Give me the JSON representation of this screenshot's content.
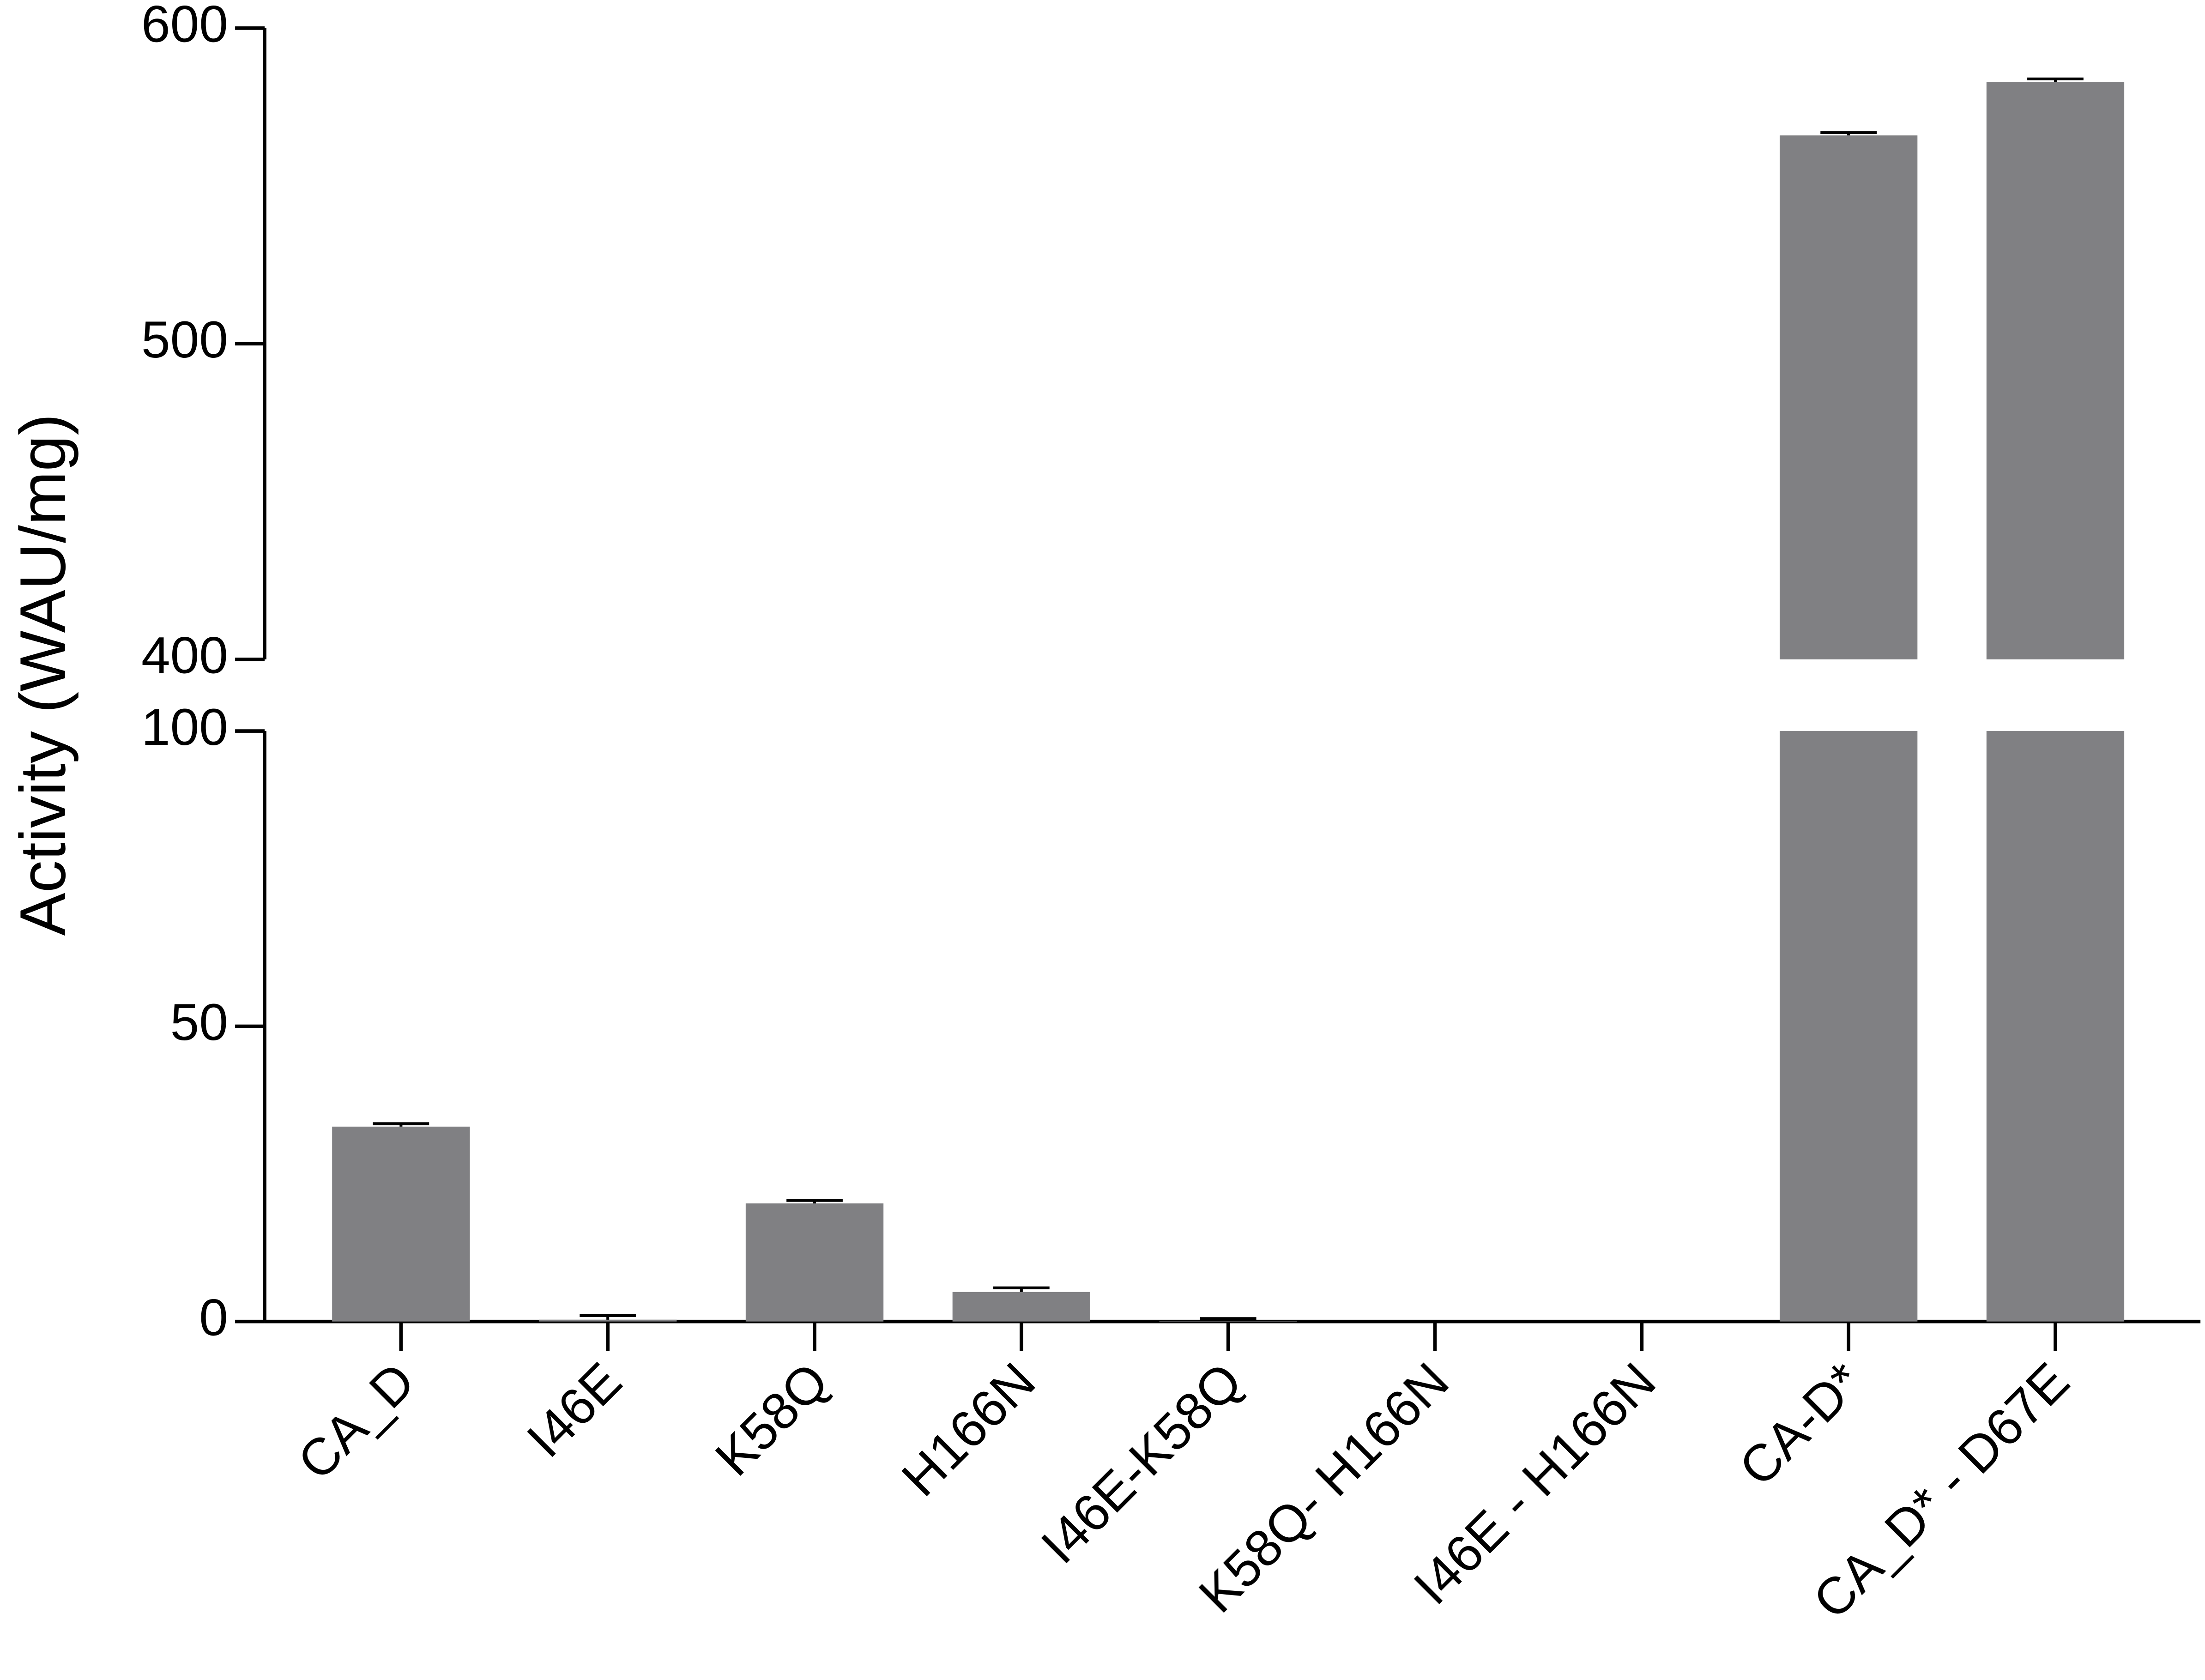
{
  "chart_data": {
    "type": "bar",
    "ylabel": "Activity (WAU/mg)",
    "categories": [
      "CA_D",
      "I46E",
      "K58Q",
      "H166N",
      "I46E-K58Q",
      "K58Q- H166N",
      "I46E - H166N",
      "CA-D*",
      "CA_D* - D67E"
    ],
    "values": [
      33,
      0.3,
      20,
      5,
      0.1,
      0,
      0,
      566,
      583
    ],
    "errors": [
      0.5,
      0.7,
      0.5,
      0.7,
      0.4,
      0,
      0,
      0.9,
      0.9
    ],
    "color": "#808083",
    "error_color": "#000000",
    "axis_segments": [
      {
        "ylim": [
          0,
          100
        ],
        "yticks": [
          0,
          50,
          100
        ]
      },
      {
        "ylim": [
          400,
          600
        ],
        "yticks": [
          400,
          500,
          600
        ]
      }
    ]
  }
}
